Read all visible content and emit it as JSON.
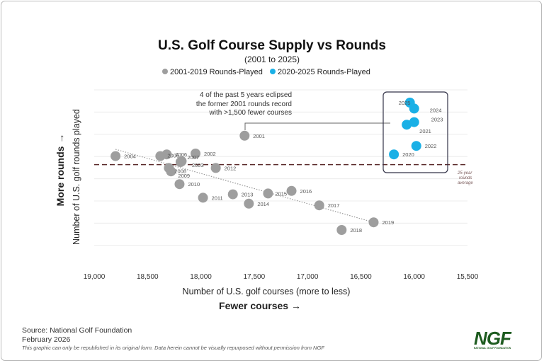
{
  "chart_data": {
    "type": "scatter",
    "title": "U.S. Golf Course Supply vs Rounds",
    "subtitle": "(2001 to 2025)",
    "xlabel": "Number of U.S. golf courses (more to less)",
    "xlabel_emphasis": "Fewer courses →",
    "ylabel": "Number of U.S. golf rounds played",
    "ylabel_emphasis": "More rounds →",
    "xlim": [
      19000,
      15500
    ],
    "x_reversed": true,
    "xticks": [
      "19,000",
      "18,500",
      "18,000",
      "17,500",
      "17,000",
      "16,500",
      "16,000",
      "15,500"
    ],
    "xtick_values": [
      19000,
      18500,
      18000,
      17500,
      17000,
      16500,
      16000,
      15500
    ],
    "ylim": [
      0,
      100
    ],
    "y_units": "relative (no y tick labels shown)",
    "grid": "horizontal",
    "legend_placement": "top-center",
    "series": [
      {
        "name": "2001-2019 Rounds-Played",
        "color": "#9e9e9e",
        "points": [
          {
            "label": "2001",
            "x": 17590,
            "y": 68
          },
          {
            "label": "2002",
            "x": 18050,
            "y": 57.5
          },
          {
            "label": "2003",
            "x": 18190,
            "y": 52.5
          },
          {
            "label": "2004",
            "x": 18800,
            "y": 56
          },
          {
            "label": "2005",
            "x": 18380,
            "y": 56
          },
          {
            "label": "2006",
            "x": 18320,
            "y": 57
          },
          {
            "label": "2007",
            "x": 18180,
            "y": 53
          },
          {
            "label": "2008",
            "x": 18300,
            "y": 49
          },
          {
            "label": "2009",
            "x": 18280,
            "y": 47
          },
          {
            "label": "2010",
            "x": 18200,
            "y": 39.5
          },
          {
            "label": "2011",
            "x": 17980,
            "y": 31.5
          },
          {
            "label": "2012",
            "x": 17860,
            "y": 49
          },
          {
            "label": "2013",
            "x": 17700,
            "y": 33.5
          },
          {
            "label": "2014",
            "x": 17550,
            "y": 28
          },
          {
            "label": "2015",
            "x": 17370,
            "y": 34
          },
          {
            "label": "2016",
            "x": 17150,
            "y": 35.5
          },
          {
            "label": "2017",
            "x": 16890,
            "y": 27
          },
          {
            "label": "2018",
            "x": 16680,
            "y": 12.5
          },
          {
            "label": "2019",
            "x": 16380,
            "y": 17
          }
        ]
      },
      {
        "name": "2020-2025 Rounds-Played",
        "color": "#1ab0e6",
        "points": [
          {
            "label": "2020",
            "x": 16190,
            "y": 57
          },
          {
            "label": "2021",
            "x": 16070,
            "y": 74.5
          },
          {
            "label": "2022",
            "x": 15980,
            "y": 62
          },
          {
            "label": "2023",
            "x": 16000,
            "y": 76
          },
          {
            "label": "2024",
            "x": 16000,
            "y": 84
          },
          {
            "label": "2025",
            "x": 16040,
            "y": 87.5
          }
        ]
      }
    ],
    "trendline": {
      "style": "dotted",
      "from": {
        "x": 18800,
        "y": 60
      },
      "to": {
        "x": 16380,
        "y": 17
      }
    },
    "average_line": {
      "y": 51,
      "label": [
        "25-year",
        "rounds",
        "average"
      ],
      "color": "#5a2a2a",
      "style": "dashed"
    },
    "annotation": [
      "4 of the past 5 years eclipsed",
      "the former 2001 rounds record",
      "with >1,500 fewer courses"
    ]
  },
  "footer": {
    "source": "Source: National Golf Foundation",
    "date": "February 2026",
    "disclaimer": "This graphic can only be republished in its original form. Data herein cannot be visually repurposed without permission from NGF"
  },
  "logo": {
    "text": "NGF",
    "subtext": "NATIONAL GOLF FOUNDATION",
    "color": "#1d5b1f"
  }
}
